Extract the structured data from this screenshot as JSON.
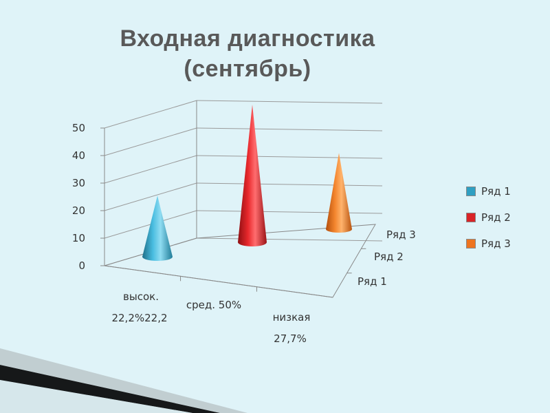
{
  "slide": {
    "title_line1": "Входная диагностика",
    "title_line2": "(сентябрь)"
  },
  "chart_data": {
    "type": "bar",
    "shape": "cone-3d",
    "title": "Входная диагностика (сентябрь)",
    "categories": [
      "высок.",
      "сред. 50%",
      "низкая"
    ],
    "category_sublabels": [
      "22,2%22,2",
      "",
      "27,7%"
    ],
    "depth_labels": [
      "Ряд 1",
      "Ряд 2",
      "Ряд 3"
    ],
    "series": [
      {
        "name": "Ряд 1",
        "color": "#2f9fc2",
        "values": [
          22.2,
          null,
          null
        ]
      },
      {
        "name": "Ряд 2",
        "color": "#d92327",
        "values": [
          null,
          50,
          null
        ]
      },
      {
        "name": "Ряд 3",
        "color": "#ee7420",
        "values": [
          null,
          null,
          27.7
        ]
      }
    ],
    "y_ticks": [
      "0",
      "10",
      "20",
      "30",
      "40",
      "50"
    ],
    "ylim": [
      0,
      50
    ],
    "grid": true,
    "legend": "right"
  }
}
